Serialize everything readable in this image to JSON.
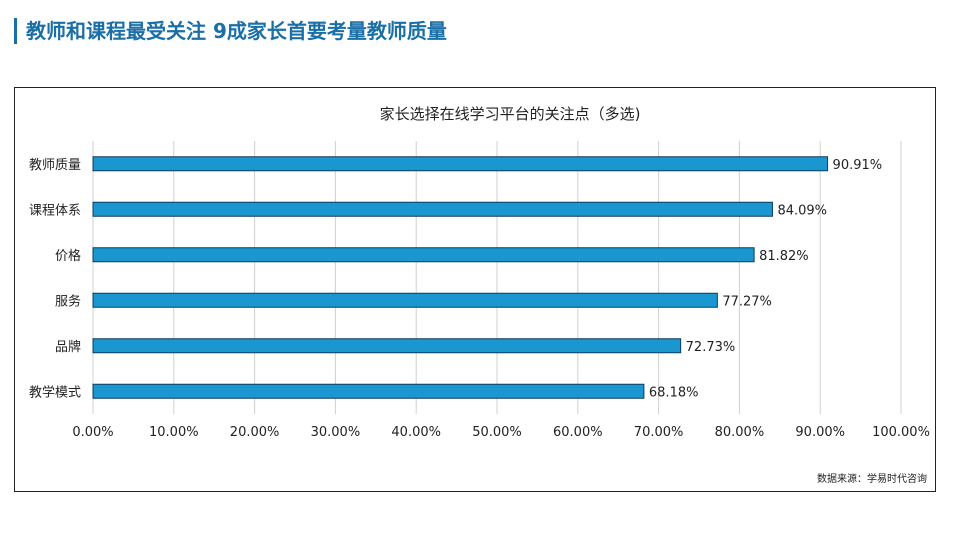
{
  "page": {
    "heading": "教师和课程最受关注  9成家长首要考量教师质量",
    "source": "数据来源：学易时代咨询"
  },
  "colors": {
    "accent": "#1a6fa6",
    "bar": "#1a96d0",
    "bar_stroke": "#0d3b5c",
    "grid": "#d0d0d0"
  },
  "chart_data": {
    "type": "bar",
    "orientation": "horizontal",
    "title": "家长选择在线学习平台的关注点（多选)",
    "categories": [
      "教师质量",
      "课程体系",
      "价格",
      "服务",
      "品牌",
      "教学模式"
    ],
    "values": [
      90.91,
      84.09,
      81.82,
      77.27,
      72.73,
      68.18
    ],
    "value_labels": [
      "90.91%",
      "84.09%",
      "81.82%",
      "77.27%",
      "72.73%",
      "68.18%"
    ],
    "xlim": [
      0,
      100
    ],
    "xticks": [
      0,
      10,
      20,
      30,
      40,
      50,
      60,
      70,
      80,
      90,
      100
    ],
    "xtick_labels": [
      "0.00%",
      "10.00%",
      "20.00%",
      "30.00%",
      "40.00%",
      "50.00%",
      "60.00%",
      "70.00%",
      "80.00%",
      "90.00%",
      "100.00%"
    ],
    "xlabel": "",
    "ylabel": "",
    "grid": "vertical",
    "legend": "none"
  }
}
